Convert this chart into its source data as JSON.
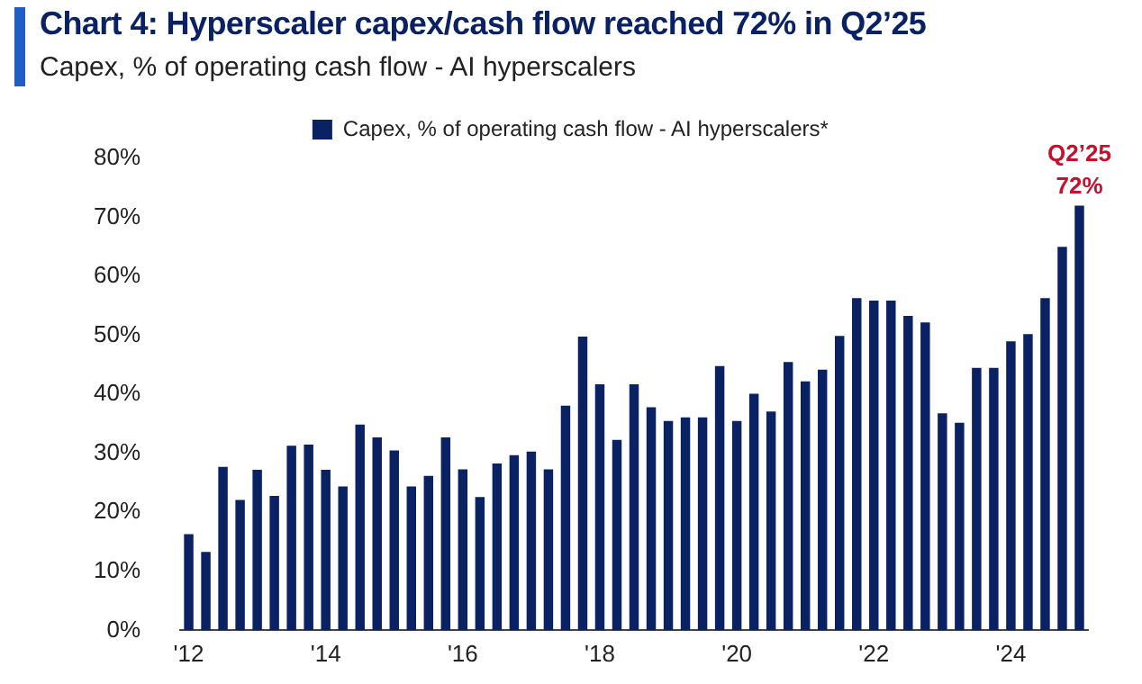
{
  "chart_data": {
    "type": "bar",
    "title": "Chart 4: Hyperscaler capex/cash flow reached 72% in Q2’25",
    "subtitle": "Capex, % of operating cash flow - AI hyperscalers",
    "categories": [
      "'12",
      null,
      null,
      null,
      null,
      null,
      null,
      null,
      "'14",
      null,
      null,
      null,
      null,
      null,
      null,
      null,
      "'16",
      null,
      null,
      null,
      null,
      null,
      null,
      null,
      "'18",
      null,
      null,
      null,
      null,
      null,
      null,
      null,
      "'20",
      null,
      null,
      null,
      null,
      null,
      null,
      null,
      "'22",
      null,
      null,
      null,
      null,
      null,
      null,
      null,
      "'24",
      null,
      null,
      null,
      null
    ],
    "series": [
      {
        "name": "Capex, % of operating cash flow - AI hyperscalers*",
        "color": "#0a2263",
        "values": [
          16.3,
          13.3,
          27.7,
          22.1,
          27.2,
          22.8,
          31.3,
          31.5,
          27.2,
          24.4,
          34.9,
          32.7,
          30.5,
          24.4,
          26.2,
          32.7,
          27.3,
          22.6,
          28.3,
          29.7,
          30.3,
          27.3,
          38.1,
          49.8,
          41.7,
          32.3,
          41.7,
          37.8,
          35.5,
          36.1,
          36.1,
          44.8,
          35.5,
          40.1,
          37.1,
          45.5,
          42.2,
          44.2,
          49.9,
          56.3,
          55.9,
          55.9,
          53.3,
          52.2,
          36.8,
          35.2,
          44.5,
          44.5,
          49.0,
          50.2,
          56.3,
          65.0,
          72
        ],
        "value_labels": [
          null,
          null,
          null,
          null,
          null,
          null,
          null,
          null,
          null,
          null,
          null,
          null,
          null,
          null,
          null,
          null,
          null,
          null,
          null,
          null,
          null,
          null,
          null,
          null,
          null,
          null,
          null,
          null,
          null,
          null,
          null,
          null,
          null,
          null,
          null,
          null,
          null,
          null,
          null,
          null,
          null,
          null,
          null,
          null,
          null,
          null,
          null,
          null,
          null,
          null,
          null,
          null,
          "72%"
        ]
      }
    ],
    "annotations": [
      "Q2’25"
    ],
    "ylim": [
      0,
      80
    ],
    "yticks": [
      {
        "value": 0,
        "label": "0%"
      },
      {
        "value": 10,
        "label": "10%"
      },
      {
        "value": 20,
        "label": "20%"
      },
      {
        "value": 30,
        "label": "30%"
      },
      {
        "value": 40,
        "label": "40%"
      },
      {
        "value": 50,
        "label": "50%"
      },
      {
        "value": 60,
        "label": "60%"
      },
      {
        "value": 70,
        "label": "70%"
      },
      {
        "value": 80,
        "label": "80%"
      }
    ],
    "grid": false,
    "legend": "top"
  }
}
